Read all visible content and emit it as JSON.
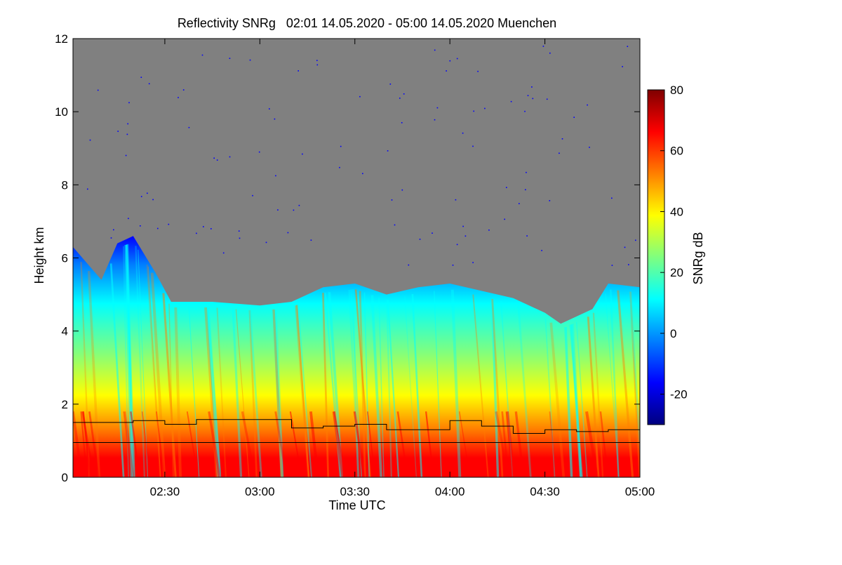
{
  "chart_data": {
    "type": "heatmap",
    "title": "Reflectivity SNRg   02:01 14.05.2020 - 05:00 14.05.2020 Muenchen",
    "xlabel": "Time UTC",
    "ylabel": "Height km",
    "xlim": [
      "02:01",
      "05:00"
    ],
    "x_ticks": [
      "02:30",
      "03:00",
      "03:30",
      "04:00",
      "04:30",
      "05:00"
    ],
    "ylim": [
      0,
      12
    ],
    "y_ticks": [
      "0",
      "2",
      "4",
      "6",
      "8",
      "10",
      "12"
    ],
    "colorbar": {
      "label": "SNRg dB",
      "range": [
        -30,
        80
      ],
      "ticks": [
        "-20",
        "0",
        "20",
        "40",
        "60",
        "80"
      ],
      "colors": [
        "#00007f",
        "#0000ff",
        "#007fff",
        "#00ffff",
        "#7fff7f",
        "#ffff00",
        "#ff7f00",
        "#ff0000",
        "#7f0000"
      ]
    },
    "no_signal_color": "#808080",
    "series": [
      {
        "x": [
          "02:01",
          "02:10",
          "02:20",
          "02:30",
          "02:40",
          "02:50",
          "03:00",
          "03:10",
          "03:20",
          "03:30",
          "03:40",
          "03:50",
          "04:00",
          "04:10",
          "04:20",
          "04:30",
          "04:40",
          "04:50",
          "05:00"
        ],
        "values": [
          1.5,
          1.5,
          1.55,
          1.45,
          1.58,
          1.58,
          1.58,
          1.35,
          1.4,
          1.45,
          1.3,
          1.3,
          1.55,
          1.4,
          1.2,
          1.3,
          1.25,
          1.3,
          1.25
        ]
      },
      {
        "x": [
          "02:01",
          "05:00"
        ],
        "values": [
          0.95,
          0.95
        ]
      }
    ],
    "echo_top_km": [
      {
        "x": "02:01",
        "y": 6.3
      },
      {
        "x": "02:10",
        "y": 5.4
      },
      {
        "x": "02:15",
        "y": 6.4
      },
      {
        "x": "02:20",
        "y": 6.6
      },
      {
        "x": "02:27",
        "y": 5.6
      },
      {
        "x": "02:32",
        "y": 4.8
      },
      {
        "x": "02:45",
        "y": 4.8
      },
      {
        "x": "03:00",
        "y": 4.7
      },
      {
        "x": "03:10",
        "y": 4.8
      },
      {
        "x": "03:20",
        "y": 5.2
      },
      {
        "x": "03:30",
        "y": 5.3
      },
      {
        "x": "03:40",
        "y": 5.0
      },
      {
        "x": "03:50",
        "y": 5.2
      },
      {
        "x": "04:00",
        "y": 5.3
      },
      {
        "x": "04:10",
        "y": 5.1
      },
      {
        "x": "04:20",
        "y": 4.9
      },
      {
        "x": "04:30",
        "y": 4.5
      },
      {
        "x": "04:35",
        "y": 4.2
      },
      {
        "x": "04:45",
        "y": 4.6
      },
      {
        "x": "04:50",
        "y": 5.3
      },
      {
        "x": "05:00",
        "y": 5.2
      }
    ]
  }
}
